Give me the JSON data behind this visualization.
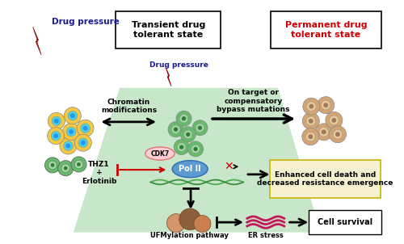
{
  "title_transient": "Transient drug\ntolerant state",
  "title_permanent": "Permanent drug\ntolerant state",
  "label_drug_pressure_top": "Drug pressure",
  "label_drug_pressure_mid": "Drug pressure",
  "label_chromatin": "Chromatin\nmodifications",
  "label_ontarget": "On target or\ncompensatory\nbypass mutations",
  "label_thz1": "THZ1\n+\nErlotinib",
  "label_cdk7": "CDK7",
  "label_pol2": "Pol II",
  "label_enhanced": "Enhanced cell death and\ndecreased resistance emergence",
  "label_ufm": "UFMylation pathway",
  "label_er": "ER stress",
  "label_survival": "Cell survival",
  "bg_color": "#ffffff",
  "green_triangle_color": "#c8e6c9",
  "permanent_text_color": "#cc0000",
  "transient_text_color": "#000000",
  "enhanced_box_color": "#f5f0d0"
}
